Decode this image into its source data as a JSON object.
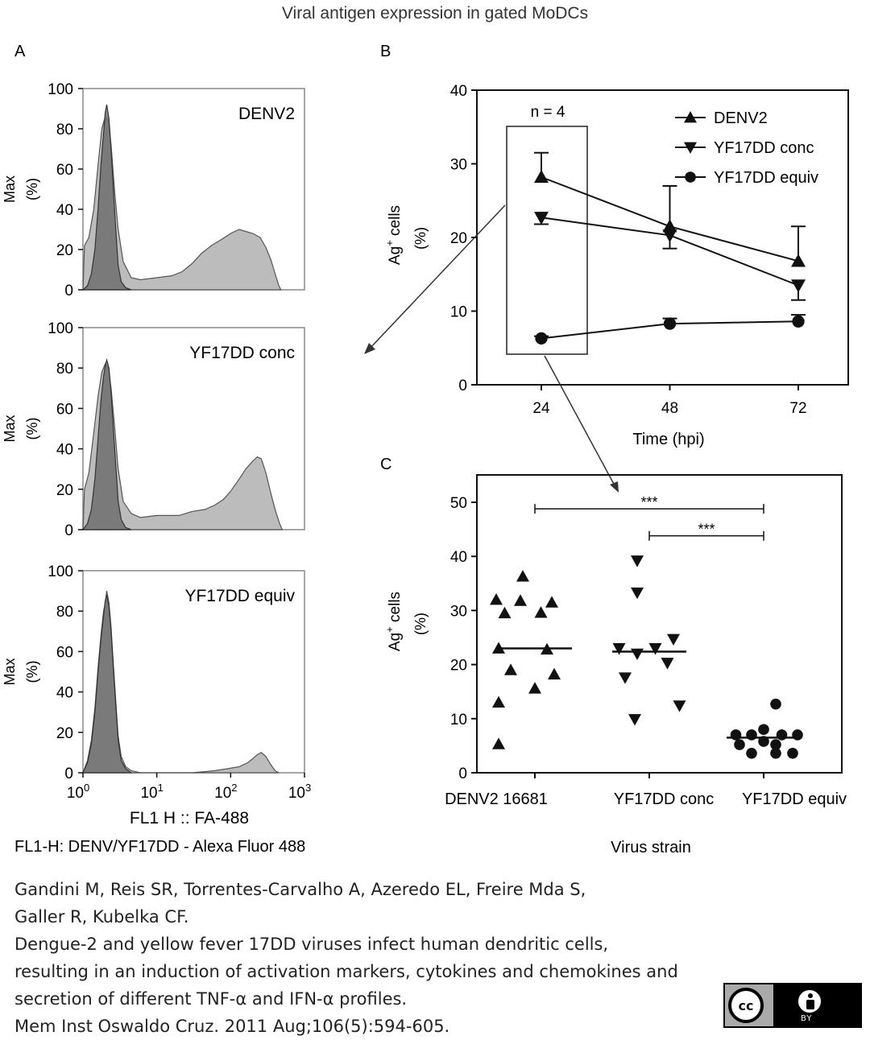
{
  "figure_title": "Viral antigen expression in gated MoDCs",
  "panel_labels": {
    "a": "A",
    "b": "B",
    "c": "C"
  },
  "colors": {
    "axis": "#111111",
    "isotype_fill": "#6e6e6e",
    "virus_fill": "#bcbcbc",
    "line": "#222222"
  },
  "chart_data": [
    {
      "id": "A",
      "type": "area",
      "ylabel_line1": "Max",
      "ylabel_line2": "(%)",
      "xlabel": "FL1 H :: FA-488",
      "footer": "FL1-H: DENV/YF17DD - Alexa Fluor 488",
      "xscale": "log",
      "xlim": [
        1,
        1000
      ],
      "ylim": [
        0,
        100
      ],
      "yticks": [
        "0",
        "20",
        "40",
        "60",
        "80",
        "100"
      ],
      "xticks": [
        {
          "base": "10",
          "exp": "0",
          "value": 1
        },
        {
          "base": "10",
          "exp": "1",
          "value": 10
        },
        {
          "base": "10",
          "exp": "2",
          "value": 100
        },
        {
          "base": "10",
          "exp": "3",
          "value": 1000
        }
      ],
      "panels": [
        {
          "label": "DENV2",
          "isotype": [
            [
              1.0,
              0
            ],
            [
              1.15,
              2
            ],
            [
              1.3,
              8
            ],
            [
              1.45,
              20
            ],
            [
              1.6,
              40
            ],
            [
              1.75,
              62
            ],
            [
              1.9,
              78
            ],
            [
              2.0,
              88
            ],
            [
              2.1,
              92
            ],
            [
              2.25,
              85
            ],
            [
              2.4,
              70
            ],
            [
              2.6,
              48
            ],
            [
              2.8,
              28
            ],
            [
              3.0,
              12
            ],
            [
              3.3,
              4
            ],
            [
              3.8,
              1
            ],
            [
              4.5,
              0
            ]
          ],
          "virus": [
            [
              1.0,
              0
            ],
            [
              1.05,
              22
            ],
            [
              1.2,
              26
            ],
            [
              1.4,
              40
            ],
            [
              1.6,
              62
            ],
            [
              1.8,
              80
            ],
            [
              2.0,
              86
            ],
            [
              2.2,
              84
            ],
            [
              2.4,
              72
            ],
            [
              2.7,
              48
            ],
            [
              3.0,
              30
            ],
            [
              3.5,
              14
            ],
            [
              4.5,
              6
            ],
            [
              6,
              5
            ],
            [
              10,
              6
            ],
            [
              16,
              7
            ],
            [
              22,
              9
            ],
            [
              30,
              13
            ],
            [
              40,
              18
            ],
            [
              55,
              22
            ],
            [
              75,
              25
            ],
            [
              100,
              28
            ],
            [
              130,
              30
            ],
            [
              160,
              29
            ],
            [
              200,
              28
            ],
            [
              250,
              26
            ],
            [
              300,
              21
            ],
            [
              350,
              15
            ],
            [
              400,
              8
            ],
            [
              450,
              2
            ],
            [
              480,
              0
            ]
          ]
        },
        {
          "label": "YF17DD conc",
          "isotype": [
            [
              1.0,
              0
            ],
            [
              1.15,
              3
            ],
            [
              1.3,
              10
            ],
            [
              1.45,
              25
            ],
            [
              1.6,
              45
            ],
            [
              1.75,
              64
            ],
            [
              1.9,
              76
            ],
            [
              2.0,
              81
            ],
            [
              2.1,
              84
            ],
            [
              2.25,
              80
            ],
            [
              2.4,
              68
            ],
            [
              2.6,
              48
            ],
            [
              2.8,
              30
            ],
            [
              3.0,
              14
            ],
            [
              3.3,
              5
            ],
            [
              3.8,
              1
            ],
            [
              4.5,
              0
            ]
          ],
          "virus": [
            [
              1.0,
              0
            ],
            [
              1.05,
              20
            ],
            [
              1.2,
              28
            ],
            [
              1.4,
              48
            ],
            [
              1.6,
              66
            ],
            [
              1.8,
              78
            ],
            [
              2.0,
              82
            ],
            [
              2.2,
              80
            ],
            [
              2.4,
              70
            ],
            [
              2.7,
              50
            ],
            [
              3.0,
              30
            ],
            [
              3.5,
              14
            ],
            [
              4.5,
              8
            ],
            [
              6,
              6
            ],
            [
              10,
              7
            ],
            [
              20,
              7
            ],
            [
              30,
              9
            ],
            [
              45,
              10
            ],
            [
              60,
              12
            ],
            [
              80,
              15
            ],
            [
              100,
              19
            ],
            [
              130,
              25
            ],
            [
              160,
              30
            ],
            [
              200,
              34
            ],
            [
              230,
              36
            ],
            [
              260,
              35
            ],
            [
              300,
              28
            ],
            [
              350,
              18
            ],
            [
              400,
              10
            ],
            [
              460,
              3
            ],
            [
              500,
              0
            ]
          ]
        },
        {
          "label": "YF17DD equiv",
          "isotype": [
            [
              1.0,
              0
            ],
            [
              1.15,
              5
            ],
            [
              1.3,
              14
            ],
            [
              1.45,
              30
            ],
            [
              1.6,
              50
            ],
            [
              1.75,
              66
            ],
            [
              1.9,
              78
            ],
            [
              2.0,
              85
            ],
            [
              2.1,
              88
            ],
            [
              2.25,
              82
            ],
            [
              2.4,
              70
            ],
            [
              2.6,
              50
            ],
            [
              2.8,
              32
            ],
            [
              3.0,
              16
            ],
            [
              3.3,
              6
            ],
            [
              3.8,
              2
            ],
            [
              4.5,
              0
            ]
          ],
          "virus": [
            [
              1.0,
              0
            ],
            [
              1.15,
              6
            ],
            [
              1.3,
              16
            ],
            [
              1.45,
              32
            ],
            [
              1.6,
              52
            ],
            [
              1.75,
              68
            ],
            [
              1.9,
              80
            ],
            [
              2.0,
              84
            ],
            [
              2.1,
              90
            ],
            [
              2.25,
              84
            ],
            [
              2.4,
              72
            ],
            [
              2.6,
              52
            ],
            [
              2.8,
              34
            ],
            [
              3.0,
              18
            ],
            [
              3.3,
              8
            ],
            [
              3.8,
              3
            ],
            [
              4.5,
              1
            ],
            [
              6,
              0
            ],
            [
              10,
              0
            ],
            [
              30,
              0
            ],
            [
              60,
              1
            ],
            [
              90,
              2
            ],
            [
              130,
              3
            ],
            [
              170,
              5
            ],
            [
              200,
              7
            ],
            [
              230,
              9
            ],
            [
              260,
              10
            ],
            [
              300,
              8
            ],
            [
              350,
              4
            ],
            [
              400,
              1
            ],
            [
              450,
              0
            ]
          ]
        }
      ]
    },
    {
      "id": "B",
      "type": "line",
      "title": "n = 4",
      "xlabel": "Time (hpi)",
      "ylabel_main": "Ag",
      "ylabel_sup": "+",
      "ylabel_rest": " cells",
      "ylabel_unit": "(%)",
      "x": [
        24,
        48,
        72
      ],
      "xticks": [
        "24",
        "48",
        "72"
      ],
      "yticks": [
        "0",
        "10",
        "20",
        "30",
        "40"
      ],
      "ylim": [
        0,
        40
      ],
      "legend_position": "top-right",
      "series": [
        {
          "name": "DENV2",
          "marker": "triangle-up",
          "values": [
            28.2,
            21.5,
            16.8
          ],
          "err_hi": [
            31.5,
            27.0,
            21.5
          ],
          "err_lo": null
        },
        {
          "name": "YF17DD conc",
          "marker": "triangle-down",
          "values": [
            22.7,
            20.3,
            13.5
          ],
          "err_hi": null,
          "err_lo": [
            21.8,
            18.5,
            11.5
          ]
        },
        {
          "name": "YF17DD equiv",
          "marker": "circle",
          "values": [
            6.3,
            8.3,
            8.6
          ],
          "err_hi": [
            6.6,
            9.0,
            9.5
          ],
          "err_lo": null
        }
      ]
    },
    {
      "id": "C",
      "type": "scatter",
      "xlabel": "Virus strain",
      "ylabel_main": "Ag",
      "ylabel_sup": "+",
      "ylabel_rest": " cells",
      "ylabel_unit": "(%)",
      "categories": [
        "DENV2 16681",
        "YF17DD conc",
        "YF17DD equiv"
      ],
      "yticks": [
        "0",
        "10",
        "20",
        "30",
        "40",
        "50"
      ],
      "ylim": [
        0,
        55
      ],
      "groups": [
        {
          "name": "DENV2 16681",
          "marker": "triangle-up",
          "median": 23.0,
          "points": [
            [
              -0.1,
              36.3
            ],
            [
              -0.32,
              32.0
            ],
            [
              -0.12,
              31.8
            ],
            [
              0.14,
              31.5
            ],
            [
              -0.25,
              29.5
            ],
            [
              0.05,
              29.6
            ],
            [
              -0.3,
              23.0
            ],
            [
              0.1,
              22.8
            ],
            [
              -0.2,
              19.0
            ],
            [
              0.16,
              18.2
            ],
            [
              0.0,
              15.6
            ],
            [
              -0.3,
              13.0
            ],
            [
              -0.3,
              5.3
            ]
          ]
        },
        {
          "name": "YF17DD conc",
          "marker": "triangle-down",
          "median": 22.4,
          "points": [
            [
              -0.1,
              39.2
            ],
            [
              -0.1,
              33.3
            ],
            [
              0.2,
              24.7
            ],
            [
              -0.25,
              23.0
            ],
            [
              0.05,
              23.0
            ],
            [
              -0.1,
              22.0
            ],
            [
              0.15,
              20.3
            ],
            [
              -0.2,
              17.6
            ],
            [
              0.25,
              12.4
            ],
            [
              -0.12,
              9.9
            ]
          ]
        },
        {
          "name": "YF17DD equiv",
          "marker": "circle",
          "median": 6.5,
          "points": [
            [
              0.1,
              12.7
            ],
            [
              0.0,
              8.0
            ],
            [
              -0.23,
              7.0
            ],
            [
              -0.1,
              7.0
            ],
            [
              0.15,
              7.0
            ],
            [
              0.28,
              7.0
            ],
            [
              0.0,
              5.8
            ],
            [
              -0.2,
              5.2
            ],
            [
              0.1,
              5.2
            ],
            [
              -0.1,
              3.6
            ],
            [
              0.1,
              3.6
            ],
            [
              0.24,
              3.6
            ]
          ]
        }
      ],
      "significance": [
        {
          "from": "DENV2 16681",
          "to": "YF17DD equiv",
          "label": "***",
          "y": 48.8
        },
        {
          "from": "YF17DD conc",
          "to": "YF17DD equiv",
          "label": "***",
          "y": 43.8
        }
      ]
    }
  ],
  "citation": {
    "authors_line1": "Gandini M, Reis SR, Torrentes-Carvalho A, Azeredo EL, Freire Mda S,",
    "authors_line2": "Galler R, Kubelka CF.",
    "title_line1": "Dengue-2 and yellow fever 17DD viruses infect human dendritic cells,",
    "title_line2": "resulting in an induction of activation markers, cytokines and chemokines and",
    "title_line3": "secretion of different TNF-α and IFN-α profiles.",
    "journal": "Mem Inst Oswaldo Cruz. 2011 Aug;106(5):594-605."
  },
  "license_badge": {
    "left": "cc",
    "right": "BY"
  }
}
